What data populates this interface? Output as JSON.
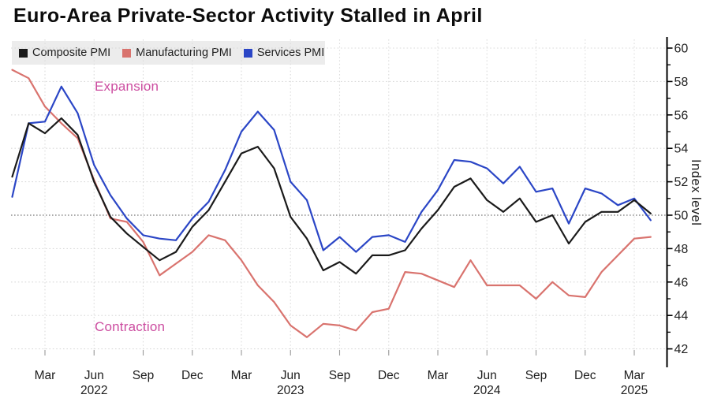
{
  "title": "Euro-Area Private-Sector Activity Stalled in April",
  "legend": {
    "background": "#ececec",
    "items": [
      {
        "label": "Composite PMI",
        "color": "#1a1a1a"
      },
      {
        "label": "Manufacturing PMI",
        "color": "#d9736e"
      },
      {
        "label": "Services PMI",
        "color": "#2b46c6"
      }
    ]
  },
  "annotations": {
    "color": "#cc4da0",
    "expansion": "Expansion",
    "contraction": "Contraction"
  },
  "chart_data": {
    "type": "line",
    "title": "Euro-Area Private-Sector Activity Stalled in April",
    "ylabel": "Index level",
    "xlabel": "",
    "ylim": [
      41.5,
      60.5
    ],
    "yticks": [
      42,
      44,
      46,
      48,
      50,
      52,
      54,
      56,
      58,
      60
    ],
    "minor_yticks": [
      43,
      45,
      47,
      49,
      51,
      53,
      55,
      57,
      59
    ],
    "threshold": {
      "value": 50
    },
    "grid": true,
    "legend_position": "top-left",
    "x": [
      "2022-01",
      "2022-02",
      "2022-03",
      "2022-04",
      "2022-05",
      "2022-06",
      "2022-07",
      "2022-08",
      "2022-09",
      "2022-10",
      "2022-11",
      "2022-12",
      "2023-01",
      "2023-02",
      "2023-03",
      "2023-04",
      "2023-05",
      "2023-06",
      "2023-07",
      "2023-08",
      "2023-09",
      "2023-10",
      "2023-11",
      "2023-12",
      "2024-01",
      "2024-02",
      "2024-03",
      "2024-04",
      "2024-05",
      "2024-06",
      "2024-07",
      "2024-08",
      "2024-09",
      "2024-10",
      "2024-11",
      "2024-12",
      "2025-01",
      "2025-02",
      "2025-03",
      "2025-04"
    ],
    "xticks": [
      {
        "label": "Mar",
        "index": 2
      },
      {
        "label": "Jun",
        "index": 5,
        "year": "2022"
      },
      {
        "label": "Sep",
        "index": 8
      },
      {
        "label": "Dec",
        "index": 11
      },
      {
        "label": "Mar",
        "index": 14
      },
      {
        "label": "Jun",
        "index": 17,
        "year": "2023"
      },
      {
        "label": "Sep",
        "index": 20
      },
      {
        "label": "Dec",
        "index": 23
      },
      {
        "label": "Mar",
        "index": 26
      },
      {
        "label": "Jun",
        "index": 29,
        "year": "2024"
      },
      {
        "label": "Sep",
        "index": 32
      },
      {
        "label": "Dec",
        "index": 35
      },
      {
        "label": "Mar",
        "index": 38,
        "year": "2025"
      }
    ],
    "series": [
      {
        "name": "Composite PMI",
        "color": "#1a1a1a",
        "values": [
          52.3,
          55.5,
          54.9,
          55.8,
          54.8,
          52.0,
          49.9,
          48.9,
          48.1,
          47.3,
          47.8,
          49.3,
          50.3,
          52.0,
          53.7,
          54.1,
          52.8,
          49.9,
          48.6,
          46.7,
          47.2,
          46.5,
          47.6,
          47.6,
          47.9,
          49.2,
          50.3,
          51.7,
          52.2,
          50.9,
          50.2,
          51.0,
          49.6,
          50.0,
          48.3,
          49.6,
          50.2,
          50.2,
          50.9,
          50.1
        ]
      },
      {
        "name": "Manufacturing PMI",
        "color": "#d9736e",
        "values": [
          58.7,
          58.2,
          56.5,
          55.5,
          54.6,
          52.1,
          49.8,
          49.6,
          48.4,
          46.4,
          47.1,
          47.8,
          48.8,
          48.5,
          47.3,
          45.8,
          44.8,
          43.4,
          42.7,
          43.5,
          43.4,
          43.1,
          44.2,
          44.4,
          46.6,
          46.5,
          46.1,
          45.7,
          47.3,
          45.8,
          45.8,
          45.8,
          45.0,
          46.0,
          45.2,
          45.1,
          46.6,
          47.6,
          48.6,
          48.7
        ]
      },
      {
        "name": "Services PMI",
        "color": "#2b46c6",
        "values": [
          51.1,
          55.5,
          55.6,
          57.7,
          56.1,
          53.0,
          51.2,
          49.8,
          48.8,
          48.6,
          48.5,
          49.8,
          50.8,
          52.7,
          55.0,
          56.2,
          55.1,
          52.0,
          50.9,
          47.9,
          48.7,
          47.8,
          48.7,
          48.8,
          48.4,
          50.2,
          51.5,
          53.3,
          53.2,
          52.8,
          51.9,
          52.9,
          51.4,
          51.6,
          49.5,
          51.6,
          51.3,
          50.6,
          51.0,
          49.7
        ]
      }
    ]
  }
}
